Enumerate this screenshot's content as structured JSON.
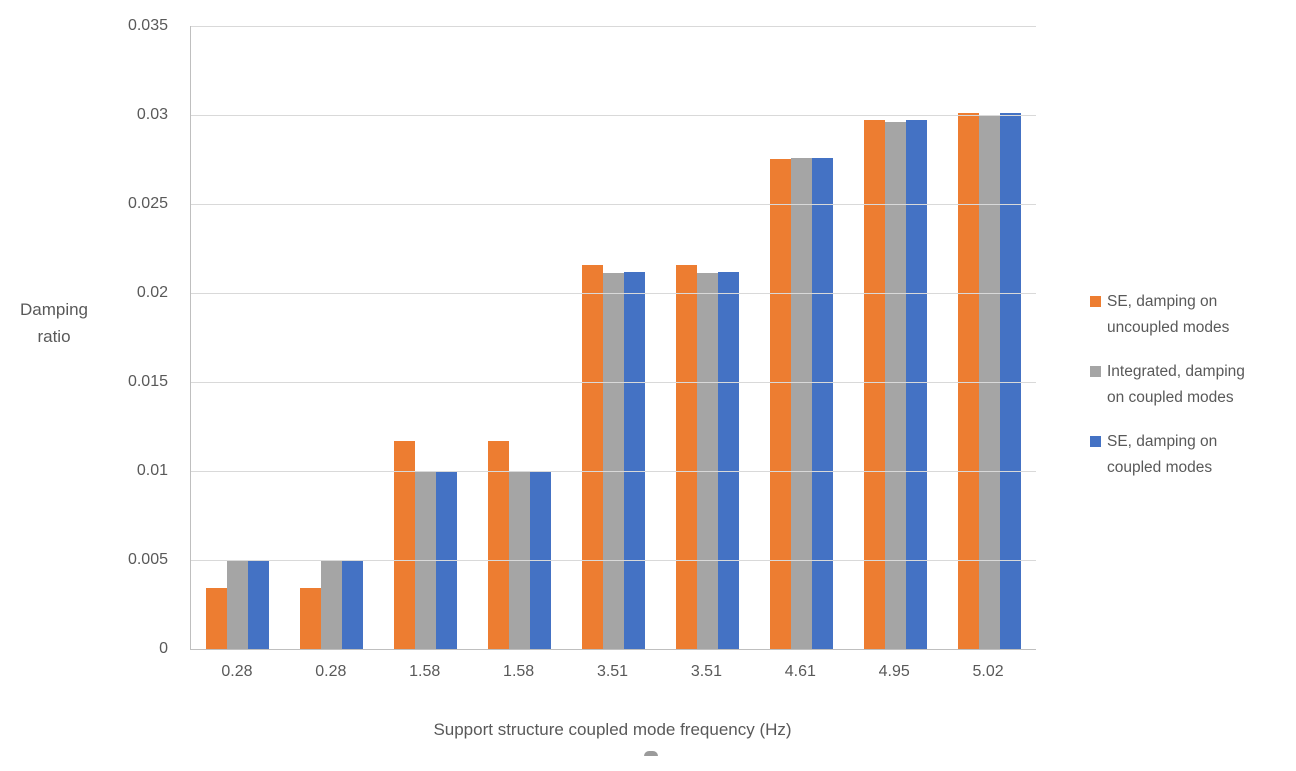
{
  "chart_data": {
    "type": "bar",
    "title": "",
    "categories": [
      "0.28",
      "0.28",
      "1.58",
      "1.58",
      "3.51",
      "3.51",
      "4.61",
      "4.95",
      "5.02"
    ],
    "series": [
      {
        "name": "SE, damping on uncoupled modes",
        "color": "#ED7D31",
        "values": [
          0.0034,
          0.0034,
          0.0117,
          0.0117,
          0.0216,
          0.0216,
          0.0275,
          0.0297,
          0.0301
        ]
      },
      {
        "name": "Integrated, damping on coupled modes",
        "color": "#A5A5A5",
        "values": [
          0.005,
          0.005,
          0.01,
          0.01,
          0.0211,
          0.0211,
          0.0276,
          0.0296,
          0.03
        ]
      },
      {
        "name": "SE, damping on coupled modes",
        "color": "#4472C4",
        "values": [
          0.005,
          0.005,
          0.01,
          0.01,
          0.0212,
          0.0212,
          0.0276,
          0.0297,
          0.0301
        ]
      }
    ],
    "xlabel": "Support structure coupled mode frequency (Hz)",
    "ylabel": "Damping ratio",
    "ylabel_lines": [
      "Damping",
      "ratio"
    ],
    "ylim": [
      0,
      0.035
    ],
    "yticks": [
      {
        "value": 0,
        "label": "0"
      },
      {
        "value": 0.005,
        "label": "0.005"
      },
      {
        "value": 0.01,
        "label": "0.01"
      },
      {
        "value": 0.015,
        "label": "0.015"
      },
      {
        "value": 0.02,
        "label": "0.02"
      },
      {
        "value": 0.025,
        "label": "0.025"
      },
      {
        "value": 0.03,
        "label": "0.03"
      },
      {
        "value": 0.035,
        "label": "0.035"
      }
    ],
    "grid": true,
    "legend_position": "right"
  },
  "legend": {
    "items": [
      {
        "series": "SE, damping on uncoupled modes",
        "color": "#ED7D31",
        "lines": [
          "SE, damping on",
          "uncoupled modes"
        ]
      },
      {
        "series": "Integrated, damping on coupled modes",
        "color": "#A5A5A5",
        "lines": [
          "Integrated, damping",
          "on coupled modes"
        ]
      },
      {
        "series": "SE, damping on coupled modes",
        "color": "#4472C4",
        "lines": [
          "SE, damping on",
          "coupled modes"
        ]
      }
    ]
  },
  "colors": {
    "background": "#FFFFFF",
    "gridline": "#D9D9D9",
    "axis_line": "#BFBFBF",
    "text": "#595959",
    "series_orange": "#ED7D31",
    "series_gray": "#A5A5A5",
    "series_blue": "#4472C4"
  }
}
